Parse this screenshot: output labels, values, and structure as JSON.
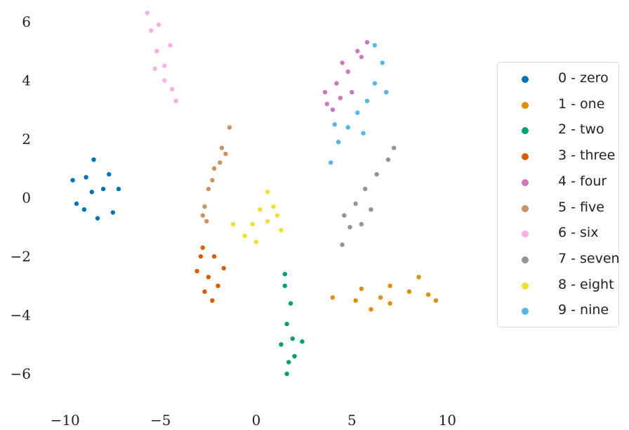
{
  "chart_data": {
    "type": "scatter",
    "title": "",
    "xlabel": "",
    "ylabel": "",
    "xlim": [
      -11.2,
      11.2
    ],
    "ylim": [
      -7.1,
      6.55
    ],
    "xticks": [
      -10,
      -5,
      0,
      5,
      10
    ],
    "yticks": [
      6,
      4,
      2,
      0,
      -2,
      -4,
      -6
    ],
    "grid": false,
    "legend_position": "right",
    "series": [
      {
        "name": "0 - zero",
        "color": "#0173b2",
        "points": [
          [
            -8.6,
            0.2
          ],
          [
            -9.6,
            0.6
          ],
          [
            -9.4,
            -0.2
          ],
          [
            -8.5,
            1.3
          ],
          [
            -7.7,
            0.8
          ],
          [
            -7.2,
            0.3
          ],
          [
            -7.5,
            -0.5
          ],
          [
            -8.3,
            -0.7
          ],
          [
            -9.0,
            -0.4
          ],
          [
            -8.0,
            0.3
          ],
          [
            -8.9,
            0.7
          ]
        ]
      },
      {
        "name": "1 - one",
        "color": "#de8f05",
        "points": [
          [
            4.0,
            -3.4
          ],
          [
            5.2,
            -3.5
          ],
          [
            6.0,
            -3.8
          ],
          [
            7.0,
            -3.6
          ],
          [
            8.0,
            -3.2
          ],
          [
            9.0,
            -3.3
          ],
          [
            9.4,
            -3.5
          ],
          [
            8.5,
            -2.7
          ],
          [
            7.0,
            -3.0
          ],
          [
            5.5,
            -3.1
          ],
          [
            6.5,
            -3.4
          ]
        ]
      },
      {
        "name": "2 - two",
        "color": "#029e73",
        "points": [
          [
            1.5,
            -3.0
          ],
          [
            1.8,
            -3.6
          ],
          [
            1.6,
            -4.3
          ],
          [
            1.3,
            -5.0
          ],
          [
            2.0,
            -5.4
          ],
          [
            1.6,
            -6.0
          ],
          [
            2.4,
            -4.9
          ],
          [
            1.5,
            -2.6
          ],
          [
            1.9,
            -4.8
          ],
          [
            1.7,
            -5.6
          ]
        ]
      },
      {
        "name": "3 - three",
        "color": "#d55e00",
        "points": [
          [
            -2.8,
            -1.7
          ],
          [
            -2.2,
            -2.0
          ],
          [
            -3.1,
            -2.5
          ],
          [
            -1.7,
            -2.4
          ],
          [
            -2.7,
            -3.2
          ],
          [
            -2.3,
            -3.5
          ],
          [
            -2.0,
            -3.0
          ],
          [
            -2.9,
            -2.0
          ],
          [
            -2.5,
            -2.7
          ]
        ]
      },
      {
        "name": "4 - four",
        "color": "#cc78bc",
        "points": [
          [
            3.6,
            3.6
          ],
          [
            4.2,
            3.9
          ],
          [
            4.0,
            3.0
          ],
          [
            4.8,
            4.3
          ],
          [
            5.3,
            5.0
          ],
          [
            5.8,
            5.3
          ],
          [
            4.5,
            4.6
          ],
          [
            5.0,
            3.6
          ],
          [
            3.7,
            3.2
          ],
          [
            4.4,
            3.4
          ],
          [
            5.5,
            4.8
          ]
        ]
      },
      {
        "name": "5 - five",
        "color": "#ca9161",
        "points": [
          [
            -1.4,
            2.4
          ],
          [
            -1.8,
            1.7
          ],
          [
            -2.2,
            1.0
          ],
          [
            -2.5,
            0.3
          ],
          [
            -2.8,
            -0.6
          ],
          [
            -2.6,
            -0.8
          ],
          [
            -1.6,
            1.5
          ],
          [
            -2.3,
            0.6
          ],
          [
            -2.7,
            -0.3
          ],
          [
            -1.9,
            1.2
          ]
        ]
      },
      {
        "name": "6 - six",
        "color": "#fbafe4",
        "points": [
          [
            -5.7,
            6.3
          ],
          [
            -5.5,
            5.7
          ],
          [
            -5.2,
            5.0
          ],
          [
            -4.8,
            4.5
          ],
          [
            -4.4,
            3.7
          ],
          [
            -4.2,
            3.3
          ],
          [
            -4.5,
            5.2
          ],
          [
            -5.1,
            5.9
          ],
          [
            -4.8,
            4.0
          ],
          [
            -5.3,
            4.4
          ]
        ]
      },
      {
        "name": "7 - seven",
        "color": "#949494",
        "points": [
          [
            4.5,
            -1.6
          ],
          [
            4.6,
            -0.6
          ],
          [
            5.2,
            -0.2
          ],
          [
            5.7,
            0.3
          ],
          [
            6.3,
            0.8
          ],
          [
            6.9,
            1.3
          ],
          [
            7.2,
            1.7
          ],
          [
            5.5,
            -0.9
          ],
          [
            6.0,
            -0.4
          ],
          [
            4.9,
            -1.0
          ]
        ]
      },
      {
        "name": "8 - eight",
        "color": "#ece133",
        "points": [
          [
            -1.2,
            -0.9
          ],
          [
            -0.6,
            -1.3
          ],
          [
            0.0,
            -1.5
          ],
          [
            0.6,
            -0.8
          ],
          [
            1.1,
            -0.6
          ],
          [
            0.6,
            0.2
          ],
          [
            0.2,
            -0.4
          ],
          [
            1.3,
            -1.1
          ],
          [
            -0.2,
            -0.9
          ],
          [
            0.9,
            -0.3
          ]
        ]
      },
      {
        "name": "9 - nine",
        "color": "#56b4e9",
        "points": [
          [
            3.9,
            1.2
          ],
          [
            4.3,
            1.9
          ],
          [
            4.8,
            2.4
          ],
          [
            5.3,
            2.9
          ],
          [
            5.8,
            3.3
          ],
          [
            6.2,
            3.9
          ],
          [
            6.6,
            4.6
          ],
          [
            6.8,
            3.6
          ],
          [
            4.1,
            2.5
          ],
          [
            5.6,
            2.2
          ],
          [
            6.2,
            5.2
          ]
        ]
      }
    ]
  }
}
